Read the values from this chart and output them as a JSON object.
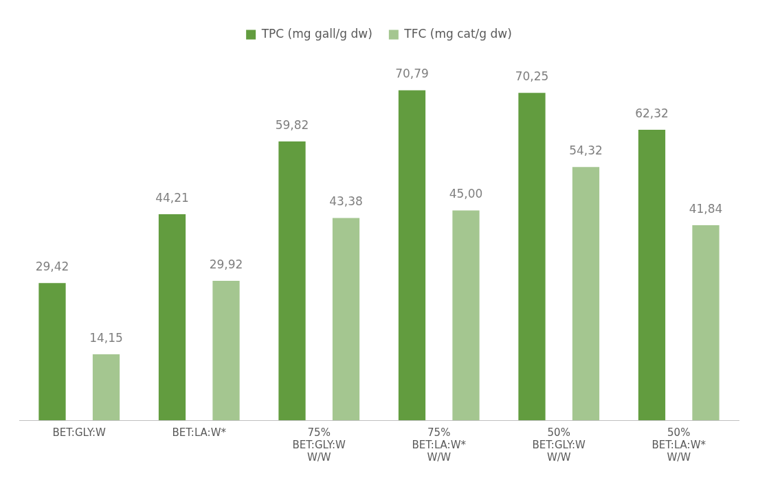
{
  "chart_data": {
    "type": "bar",
    "categories": [
      "BET:GLY:W",
      "BET:LA:W*",
      "75%\nBET:GLY:W\nW/W",
      "75%\nBET:LA:W*\nW/W",
      "50%\nBET:GLY:W\nW/W",
      "50%\nBET:LA:W*\nW/W"
    ],
    "series": [
      {
        "name": "TPC (mg gall/g dw)",
        "color": "#629c3f",
        "values": [
          29.42,
          44.21,
          59.82,
          70.79,
          70.25,
          62.32
        ],
        "value_labels": [
          "29,42",
          "44,21",
          "59,82",
          "70,79",
          "70,25",
          "62,32"
        ]
      },
      {
        "name": "TFC (mg cat/g dw)",
        "color": "#a4c690",
        "values": [
          14.15,
          29.92,
          43.38,
          45.0,
          54.32,
          41.84
        ],
        "value_labels": [
          "14,15",
          "29,92",
          "43,38",
          "45,00",
          "54,32",
          "41,84"
        ]
      }
    ],
    "legend": "top",
    "grid": false,
    "tick_labels": "x"
  }
}
